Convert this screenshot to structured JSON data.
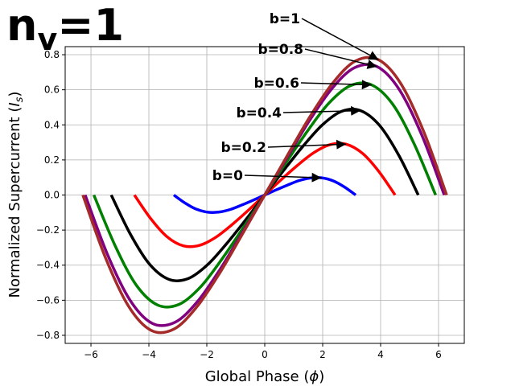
{
  "chart_data": {
    "type": "line",
    "title": [
      "n",
      "v",
      "=1"
    ],
    "xlabel": [
      "Global Phase (",
      "ϕ",
      ")"
    ],
    "ylabel": [
      "Normalized Supercurrent (",
      "I",
      "s",
      ")"
    ],
    "xlim": [
      -6.89,
      6.89
    ],
    "ylim": [
      -0.846,
      0.846
    ],
    "xticks": [
      {
        "value": -6,
        "label": "−6"
      },
      {
        "value": -4,
        "label": "−4"
      },
      {
        "value": -2,
        "label": "−2"
      },
      0,
      2,
      4,
      6
    ],
    "yticks": [
      {
        "value": -0.8,
        "label": "−0.8"
      },
      {
        "value": -0.6,
        "label": "−0.6"
      },
      {
        "value": -0.4,
        "label": "−0.4"
      },
      {
        "value": -0.2,
        "label": "−0.2"
      },
      {
        "value": 0,
        "label": "0.0"
      },
      0.2,
      0.4,
      0.6,
      0.8
    ],
    "grid": true,
    "series": [
      {
        "name": "b=0",
        "color": "#0000ff",
        "x": [
          -3.14,
          -2.75,
          -2.36,
          -1.96,
          -1.57,
          -1.18,
          -0.79,
          -0.39,
          0,
          0.39,
          0.79,
          1.18,
          1.57,
          1.96,
          2.36,
          2.75,
          3.14
        ],
        "values": [
          0,
          -0.046,
          -0.081,
          -0.098,
          -0.097,
          -0.082,
          -0.057,
          -0.029,
          0,
          0.029,
          0.057,
          0.082,
          0.097,
          0.098,
          0.081,
          0.046,
          0
        ]
      },
      {
        "name": "b=0.2",
        "color": "#ff0000",
        "x": [
          -4.5,
          -3.94,
          -3.38,
          -2.81,
          -2.25,
          -1.69,
          -1.13,
          -0.56,
          0,
          0.56,
          1.13,
          1.69,
          2.25,
          2.81,
          3.38,
          3.94,
          4.5
        ],
        "values": [
          0,
          -0.134,
          -0.237,
          -0.29,
          -0.287,
          -0.241,
          -0.169,
          -0.086,
          0,
          0.086,
          0.169,
          0.241,
          0.287,
          0.29,
          0.237,
          0.134,
          0
        ]
      },
      {
        "name": "b=0.4",
        "color": "#000000",
        "x": [
          -5.3,
          -4.64,
          -3.98,
          -3.31,
          -2.65,
          -1.99,
          -1.33,
          -0.66,
          0,
          0.66,
          1.33,
          1.99,
          2.65,
          3.31,
          3.98,
          4.64,
          5.3
        ],
        "values": [
          0,
          -0.223,
          -0.394,
          -0.481,
          -0.477,
          -0.4,
          -0.28,
          -0.142,
          0,
          0.142,
          0.28,
          0.4,
          0.477,
          0.481,
          0.394,
          0.223,
          0
        ]
      },
      {
        "name": "b=0.6",
        "color": "#008000",
        "x": [
          -5.9,
          -5.16,
          -4.43,
          -3.69,
          -2.95,
          -2.21,
          -1.48,
          -0.74,
          0,
          0.74,
          1.48,
          2.21,
          2.95,
          3.69,
          4.43,
          5.16,
          5.9
        ],
        "values": [
          0,
          -0.291,
          -0.515,
          -0.628,
          -0.623,
          -0.523,
          -0.366,
          -0.186,
          0,
          0.186,
          0.366,
          0.523,
          0.623,
          0.628,
          0.515,
          0.291,
          0
        ]
      },
      {
        "name": "b=0.8",
        "color": "#800080",
        "x": [
          -6.2,
          -5.43,
          -4.65,
          -3.88,
          -3.1,
          -2.33,
          -1.55,
          -0.78,
          0,
          0.78,
          1.55,
          2.33,
          3.1,
          3.88,
          4.65,
          5.43,
          6.2
        ],
        "values": [
          0,
          -0.339,
          -0.6,
          -0.732,
          -0.726,
          -0.609,
          -0.426,
          -0.216,
          0,
          0.216,
          0.426,
          0.609,
          0.726,
          0.732,
          0.6,
          0.339,
          0
        ]
      },
      {
        "name": "b=1",
        "color": "#a52a2a",
        "x": [
          -6.28,
          -5.5,
          -4.71,
          -3.93,
          -3.14,
          -2.36,
          -1.57,
          -0.79,
          0,
          0.79,
          1.57,
          2.36,
          3.14,
          3.93,
          4.71,
          5.5,
          6.28
        ],
        "values": [
          0,
          -0.357,
          -0.632,
          -0.771,
          -0.765,
          -0.641,
          -0.449,
          -0.228,
          0,
          0.228,
          0.449,
          0.641,
          0.765,
          0.771,
          0.632,
          0.357,
          0
        ]
      }
    ]
  }
}
